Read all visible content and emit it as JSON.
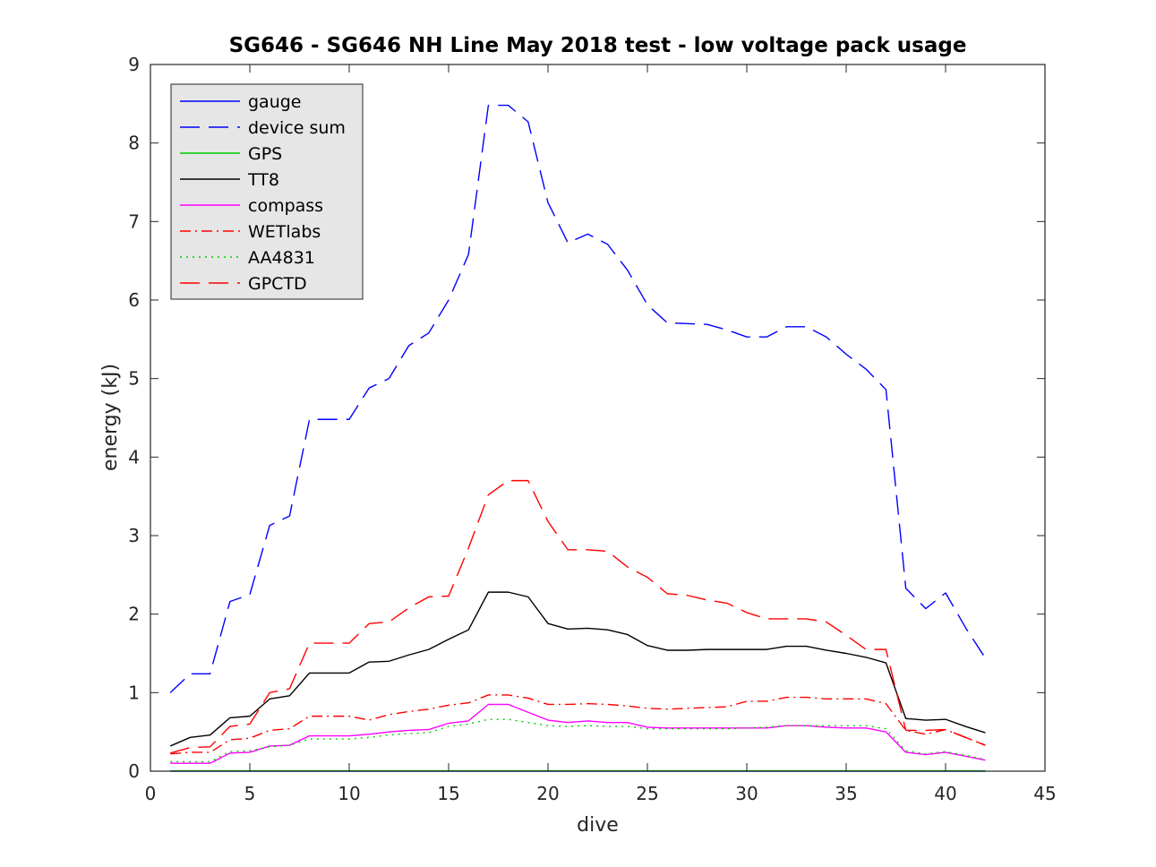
{
  "chart_data": {
    "type": "line",
    "title": "SG646 - SG646 NH Line May 2018 test - low voltage pack usage",
    "xlabel": "dive",
    "ylabel": "energy (kJ)",
    "xlim": [
      0,
      45
    ],
    "ylim": [
      0,
      9
    ],
    "xticks": [
      0,
      5,
      10,
      15,
      20,
      25,
      30,
      35,
      40,
      45
    ],
    "yticks": [
      0,
      1,
      2,
      3,
      4,
      5,
      6,
      7,
      8,
      9
    ],
    "grid": false,
    "legend_position": "top-left",
    "x": [
      1,
      2,
      3,
      4,
      5,
      6,
      7,
      8,
      9,
      10,
      11,
      12,
      13,
      14,
      15,
      16,
      17,
      18,
      19,
      20,
      21,
      22,
      23,
      24,
      25,
      26,
      27,
      28,
      29,
      30,
      31,
      32,
      33,
      34,
      35,
      36,
      37,
      38,
      39,
      40,
      41,
      42
    ],
    "series": [
      {
        "name": "gauge",
        "color": "#0000ff",
        "dash": "solid",
        "values": [
          0,
          0,
          0,
          0,
          0,
          0,
          0,
          0,
          0,
          0,
          0,
          0,
          0,
          0,
          0,
          0,
          0,
          0,
          0,
          0,
          0,
          0,
          0,
          0,
          0,
          0,
          0,
          0,
          0,
          0,
          0,
          0,
          0,
          0,
          0,
          0,
          0,
          0,
          0,
          0,
          0,
          0
        ]
      },
      {
        "name": "device sum",
        "color": "#0000ff",
        "dash": "dashed",
        "values": [
          1.0,
          1.24,
          1.24,
          2.16,
          2.25,
          3.13,
          3.25,
          4.48,
          4.48,
          4.48,
          4.88,
          5.0,
          5.42,
          5.58,
          6.0,
          6.58,
          8.48,
          8.48,
          8.27,
          7.24,
          6.73,
          6.84,
          6.71,
          6.38,
          5.94,
          5.71,
          5.7,
          5.69,
          5.62,
          5.53,
          5.53,
          5.66,
          5.66,
          5.53,
          5.31,
          5.12,
          4.86,
          2.33,
          2.07,
          2.27,
          1.83,
          1.44
        ]
      },
      {
        "name": "GPS",
        "color": "#00cc00",
        "dash": "solid",
        "values": [
          0.005,
          0.005,
          0.005,
          0.005,
          0.005,
          0.005,
          0.005,
          0.005,
          0.005,
          0.005,
          0.005,
          0.005,
          0.005,
          0.005,
          0.005,
          0.005,
          0.005,
          0.005,
          0.005,
          0.005,
          0.005,
          0.005,
          0.005,
          0.005,
          0.005,
          0.005,
          0.005,
          0.005,
          0.005,
          0.005,
          0.005,
          0.005,
          0.005,
          0.005,
          0.005,
          0.005,
          0.005,
          0.005,
          0.005,
          0.005,
          0.005,
          0.005
        ]
      },
      {
        "name": "TT8",
        "color": "#000000",
        "dash": "solid",
        "values": [
          0.32,
          0.43,
          0.46,
          0.68,
          0.7,
          0.92,
          0.96,
          1.25,
          1.25,
          1.25,
          1.39,
          1.4,
          1.48,
          1.55,
          1.68,
          1.8,
          2.28,
          2.28,
          2.22,
          1.88,
          1.81,
          1.82,
          1.8,
          1.74,
          1.6,
          1.54,
          1.54,
          1.55,
          1.55,
          1.55,
          1.55,
          1.59,
          1.59,
          1.54,
          1.5,
          1.45,
          1.38,
          0.67,
          0.65,
          0.66,
          0.57,
          0.49
        ]
      },
      {
        "name": "compass",
        "color": "#ff00ff",
        "dash": "solid",
        "values": [
          0.1,
          0.1,
          0.1,
          0.23,
          0.24,
          0.32,
          0.33,
          0.45,
          0.45,
          0.45,
          0.47,
          0.5,
          0.52,
          0.53,
          0.61,
          0.64,
          0.85,
          0.85,
          0.75,
          0.65,
          0.62,
          0.64,
          0.62,
          0.62,
          0.56,
          0.55,
          0.55,
          0.55,
          0.55,
          0.55,
          0.55,
          0.58,
          0.58,
          0.56,
          0.55,
          0.55,
          0.5,
          0.24,
          0.21,
          0.24,
          0.19,
          0.14
        ]
      },
      {
        "name": "WETlabs",
        "color": "#ff0000",
        "dash": "dashdot",
        "values": [
          0.22,
          0.24,
          0.24,
          0.4,
          0.42,
          0.52,
          0.54,
          0.7,
          0.7,
          0.7,
          0.65,
          0.72,
          0.76,
          0.79,
          0.84,
          0.87,
          0.97,
          0.97,
          0.93,
          0.85,
          0.85,
          0.86,
          0.85,
          0.83,
          0.8,
          0.79,
          0.8,
          0.81,
          0.82,
          0.89,
          0.89,
          0.94,
          0.94,
          0.92,
          0.92,
          0.92,
          0.86,
          0.52,
          0.47,
          0.53,
          0.43,
          0.33
        ]
      },
      {
        "name": "AA4831",
        "color": "#00cc00",
        "dash": "dotted",
        "values": [
          0.12,
          0.12,
          0.12,
          0.25,
          0.26,
          0.31,
          0.33,
          0.41,
          0.41,
          0.41,
          0.43,
          0.46,
          0.48,
          0.49,
          0.57,
          0.6,
          0.66,
          0.66,
          0.62,
          0.58,
          0.57,
          0.58,
          0.57,
          0.57,
          0.54,
          0.54,
          0.54,
          0.54,
          0.54,
          0.55,
          0.56,
          0.58,
          0.58,
          0.58,
          0.58,
          0.58,
          0.54,
          0.26,
          0.22,
          0.25,
          0.2,
          0.15
        ]
      },
      {
        "name": "GPCTD",
        "color": "#ff0000",
        "dash": "dashed",
        "values": [
          0.23,
          0.3,
          0.31,
          0.57,
          0.6,
          1.0,
          1.05,
          1.63,
          1.63,
          1.63,
          1.88,
          1.9,
          2.08,
          2.22,
          2.23,
          2.84,
          3.52,
          3.7,
          3.7,
          3.18,
          2.82,
          2.82,
          2.8,
          2.6,
          2.47,
          2.26,
          2.24,
          2.18,
          2.14,
          2.02,
          1.94,
          1.94,
          1.94,
          1.9,
          1.73,
          1.55,
          1.55,
          0.52,
          0.52,
          0.53,
          0.43,
          0.33
        ]
      }
    ]
  }
}
